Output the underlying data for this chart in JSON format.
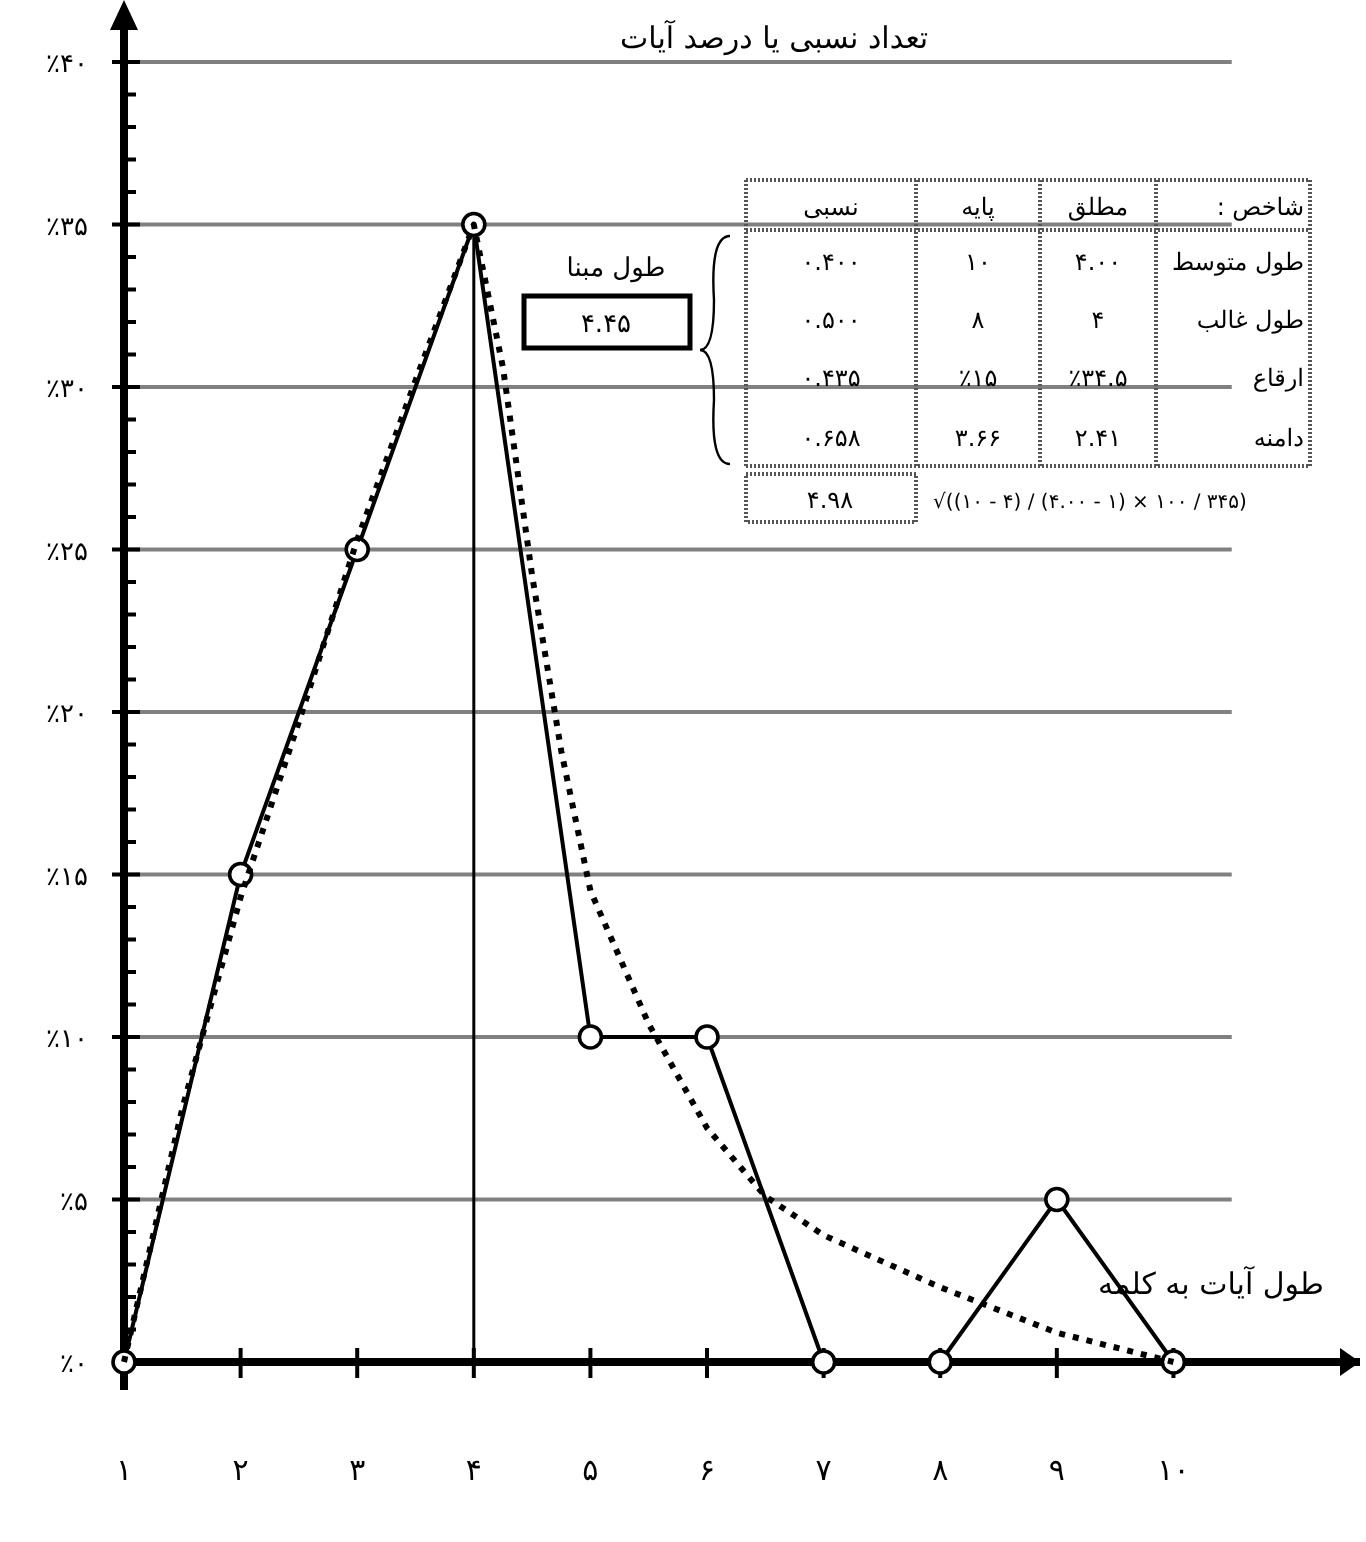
{
  "chart_data": {
    "type": "line",
    "ylabel": "تعداد نسبی یا درصد آیات",
    "xlabel": "طول آیات به کلمه",
    "xlim": [
      1,
      11.6
    ],
    "xticks": [
      {
        "value": 1,
        "label": "۱"
      },
      {
        "value": 2,
        "label": "۲"
      },
      {
        "value": 3,
        "label": "۳"
      },
      {
        "value": 4,
        "label": "۴"
      },
      {
        "value": 5,
        "label": "۵"
      },
      {
        "value": 6,
        "label": "۶"
      },
      {
        "value": 7,
        "label": "۷"
      },
      {
        "value": 8,
        "label": "۸"
      },
      {
        "value": 9,
        "label": "۹"
      },
      {
        "value": 10,
        "label": "۱۰"
      }
    ],
    "ylim": [
      0,
      41.6
    ],
    "yticks": [
      {
        "value": 0,
        "label": "٪۰"
      },
      {
        "value": 1,
        "label": null
      },
      {
        "value": 2,
        "label": null
      },
      {
        "value": 3,
        "label": null
      },
      {
        "value": 4,
        "label": null
      },
      {
        "value": 5,
        "label": "٪۵"
      },
      {
        "value": 6,
        "label": null
      },
      {
        "value": 7,
        "label": null
      },
      {
        "value": 8,
        "label": null
      },
      {
        "value": 9,
        "label": null
      },
      {
        "value": 10,
        "label": "٪۱۰"
      },
      {
        "value": 11,
        "label": null
      },
      {
        "value": 12,
        "label": null
      },
      {
        "value": 13,
        "label": null
      },
      {
        "value": 14,
        "label": null
      },
      {
        "value": 15,
        "label": "٪۱۵"
      },
      {
        "value": 16,
        "label": null
      },
      {
        "value": 17,
        "label": null
      },
      {
        "value": 18,
        "label": null
      },
      {
        "value": 19,
        "label": null
      },
      {
        "value": 20,
        "label": "٪۲۰"
      },
      {
        "value": 21,
        "label": null
      },
      {
        "value": 22,
        "label": null
      },
      {
        "value": 23,
        "label": null
      },
      {
        "value": 24,
        "label": null
      },
      {
        "value": 25,
        "label": "٪۲۵"
      },
      {
        "value": 26,
        "label": null
      },
      {
        "value": 27,
        "label": null
      },
      {
        "value": 28,
        "label": null
      },
      {
        "value": 29,
        "label": null
      },
      {
        "value": 30,
        "label": "٪۳۰"
      },
      {
        "value": 31,
        "label": null
      },
      {
        "value": 32,
        "label": null
      },
      {
        "value": 33,
        "label": null
      },
      {
        "value": 34,
        "label": null
      },
      {
        "value": 35,
        "label": "٪۳۵"
      },
      {
        "value": 36,
        "label": null
      },
      {
        "value": 37,
        "label": null
      },
      {
        "value": 38,
        "label": null
      },
      {
        "value": 39,
        "label": null
      },
      {
        "value": 40,
        "label": "٪۴۰"
      }
    ],
    "grid": "y",
    "series": [
      {
        "color": "#000000",
        "marker": "circle",
        "line_style": "solid",
        "x": [
          1,
          2,
          3,
          4,
          5,
          6,
          7,
          8,
          9,
          10
        ],
        "values": [
          0,
          15,
          25,
          35,
          10,
          10,
          0,
          0,
          5,
          0
        ]
      },
      {
        "color": "#000000",
        "marker": "none",
        "line_style": "dotted",
        "x": [
          1,
          1.5,
          2,
          2.5,
          3,
          3.5,
          4,
          4.25,
          4.5,
          4.75,
          5,
          5.5,
          6,
          6.5,
          7,
          8,
          9,
          10
        ],
        "values": [
          0,
          7.8,
          14.3,
          19.7,
          25.3,
          30.2,
          35,
          30.6,
          24.2,
          18.8,
          14.5,
          10.4,
          7.2,
          5.1,
          3.9,
          2.3,
          0.9,
          0
        ]
      }
    ],
    "ref_lines": [
      {
        "axis": "x",
        "value": 4,
        "label": null
      }
    ],
    "annotations": [
      "شاخص :",
      "مطلق",
      "پایه",
      "نسبی",
      "طول متوسط",
      "۴.۰۰",
      "۱۰",
      "۰.۴۰۰",
      "طول غالب",
      "۴",
      "۸",
      "۰.۵۰۰",
      "ارقاع",
      "٪۳۴.۵",
      "٪۱۵",
      "۰.۴۳۵",
      "دامنه",
      "۲.۴۱",
      "۳.۶۶",
      "۰.۶۵۸",
      "۴.۹۸",
      "√((۱۰ - ۴) / (۴.۰۰ - ۱) × ۱۰۰ / ۳۴۵)",
      "طول مبنا",
      "۴.۴۵"
    ]
  }
}
